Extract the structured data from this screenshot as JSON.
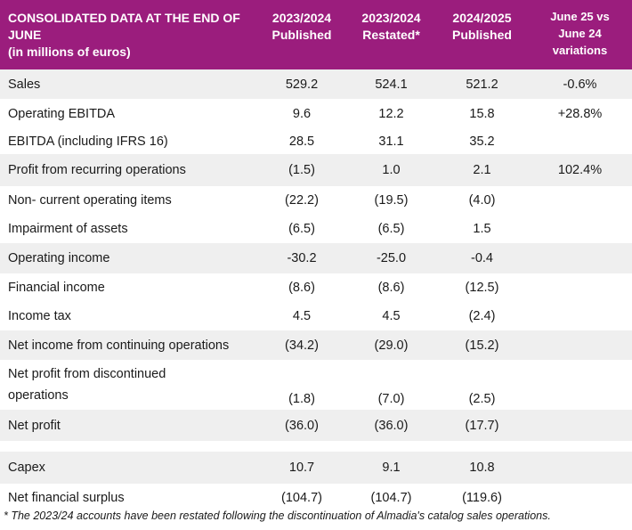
{
  "header": {
    "title": "CONSOLIDATED DATA AT THE END OF JUNE\n(in millions of euros)",
    "columns": [
      "2023/2024\nPublished",
      "2023/2024\nRestated*",
      "2024/2025\nPublished",
      "June 25 vs\nJune 24\nvariations"
    ]
  },
  "rows": [
    {
      "label": "Sales",
      "v1": "529.2",
      "v2": "524.1",
      "v3": "521.2",
      "v4": "-0.6%"
    },
    {
      "label": "Operating EBITDA",
      "v1": "9.6",
      "v2": "12.2",
      "v3": "15.8",
      "v4": "+28.8%"
    },
    {
      "label": "EBITDA (including IFRS 16)",
      "v1": "28.5",
      "v2": "31.1",
      "v3": "35.2",
      "v4": ""
    },
    {
      "label": "Profit from recurring operations",
      "v1": "(1.5)",
      "v2": "1.0",
      "v3": "2.1",
      "v4": "102.4%"
    },
    {
      "label": "Non- current operating items",
      "v1": "(22.2)",
      "v2": "(19.5)",
      "v3": "(4.0)",
      "v4": ""
    },
    {
      "label": "Impairment of assets",
      "v1": "(6.5)",
      "v2": "(6.5)",
      "v3": "1.5",
      "v4": ""
    },
    {
      "label": "Operating income",
      "v1": "-30.2",
      "v2": "-25.0",
      "v3": "-0.4",
      "v4": ""
    },
    {
      "label": "Financial income",
      "v1": "(8.6)",
      "v2": "(8.6)",
      "v3": "(12.5)",
      "v4": ""
    },
    {
      "label": "Income tax",
      "v1": "4.5",
      "v2": "4.5",
      "v3": "(2.4)",
      "v4": ""
    },
    {
      "label": "Net income from continuing operations",
      "v1": "(34.2)",
      "v2": "(29.0)",
      "v3": "(15.2)",
      "v4": ""
    },
    {
      "label": "Net profit from discontinued operations",
      "v1": "(1.8)",
      "v2": "(7.0)",
      "v3": "(2.5)",
      "v4": ""
    },
    {
      "label": "Net profit",
      "v1": "(36.0)",
      "v2": "(36.0)",
      "v3": "(17.7)",
      "v4": ""
    },
    {
      "label": "",
      "v1": "",
      "v2": "",
      "v3": "",
      "v4": ""
    },
    {
      "label": "Capex",
      "v1": "10.7",
      "v2": "9.1",
      "v3": "10.8",
      "v4": ""
    },
    {
      "label": "Net financial surplus",
      "v1": "(104.7)",
      "v2": "(104.7)",
      "v3": "(119.6)",
      "v4": ""
    }
  ],
  "footnote": "* The 2023/24 accounts have been restated following the discontinuation of Almadia's catalog sales operations.",
  "colors": {
    "header_bg": "#9b1d7d",
    "stripe_bg": "#efefef"
  }
}
